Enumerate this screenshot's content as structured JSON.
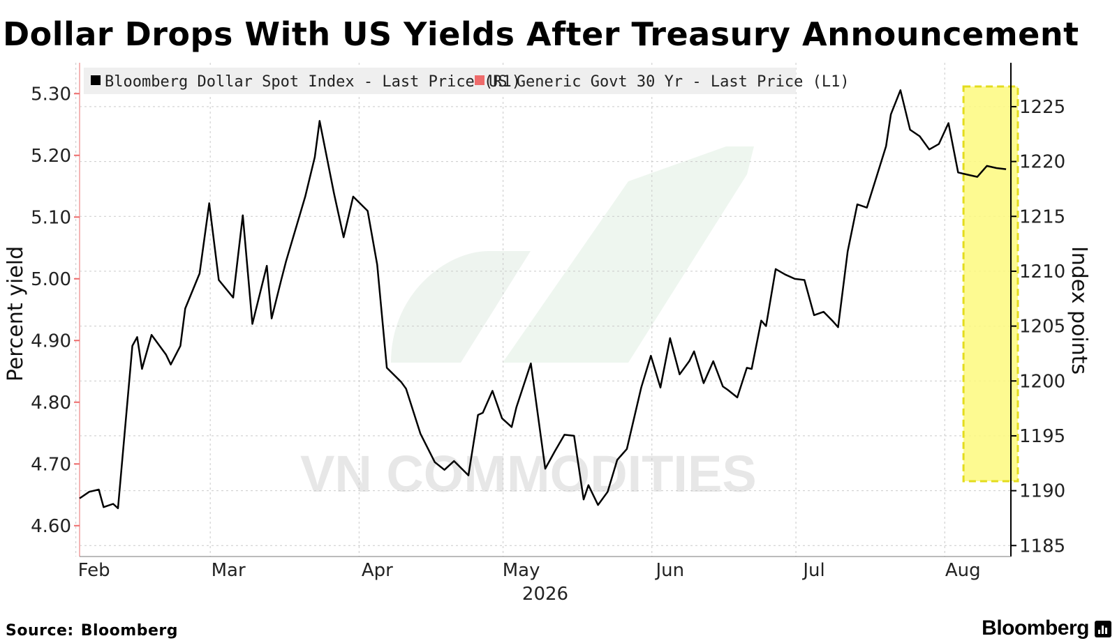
{
  "title": "Dollar Drops With US Yields After Treasury Announcement",
  "source_label": "Source:",
  "source_value": "Bloomberg",
  "brand": "Bloomberg",
  "watermark": "VN COMMODITIES",
  "colors": {
    "dollar": "#000000",
    "yield": "#ee6b6b",
    "highlight_fill": "#fdf97e",
    "highlight_border": "#e3dc1d",
    "grid": "#c9c9c9"
  },
  "chart_data": {
    "type": "line",
    "xlabel_year": "2026",
    "ylabel_left": "Percent yield",
    "ylabel_right": "Index points",
    "ylim_left": [
      4.55,
      5.35
    ],
    "ylim_right": [
      1184,
      1229
    ],
    "yticks_left": [
      "4.60",
      "4.70",
      "4.80",
      "4.90",
      "5.00",
      "5.10",
      "5.20",
      "5.30"
    ],
    "yticks_right": [
      "1185",
      "1190",
      "1195",
      "1200",
      "1205",
      "1210",
      "1215",
      "1220",
      "1225"
    ],
    "x_range": [
      "2026-01-29",
      "2026-08-11"
    ],
    "month_labels": [
      {
        "label": "Feb",
        "date": "2026-02-01"
      },
      {
        "label": "Mar",
        "date": "2026-03-01"
      },
      {
        "label": "Apr",
        "date": "2026-04-01"
      },
      {
        "label": "May",
        "date": "2026-05-01"
      },
      {
        "label": "Jun",
        "date": "2026-06-01"
      },
      {
        "label": "Jul",
        "date": "2026-07-01"
      },
      {
        "label": "Aug",
        "date": "2026-08-01"
      }
    ],
    "legend": "top-left",
    "grid": true,
    "highlight": {
      "from": "2026-08-02",
      "to": "2026-08-11"
    },
    "series": [
      {
        "name": "Bloomberg Dollar Spot Index - Last Price (R1)",
        "axis": "right",
        "color": "#000000",
        "points": [
          [
            "2026-01-29",
            1189.3
          ],
          [
            "2026-01-31",
            1189.9
          ],
          [
            "2026-02-02",
            1190.1
          ],
          [
            "2026-02-03",
            1188.5
          ],
          [
            "2026-02-05",
            1188.8
          ],
          [
            "2026-02-06",
            1188.4
          ],
          [
            "2026-02-09",
            1203.2
          ],
          [
            "2026-02-10",
            1204.0
          ],
          [
            "2026-02-11",
            1201.1
          ],
          [
            "2026-02-13",
            1204.2
          ],
          [
            "2026-02-14",
            1203.6
          ],
          [
            "2026-02-16",
            1202.4
          ],
          [
            "2026-02-17",
            1201.5
          ],
          [
            "2026-02-19",
            1203.2
          ],
          [
            "2026-02-20",
            1206.6
          ],
          [
            "2026-02-23",
            1209.8
          ],
          [
            "2026-02-25",
            1216.2
          ],
          [
            "2026-02-27",
            1209.2
          ],
          [
            "2026-03-02",
            1207.6
          ],
          [
            "2026-03-04",
            1215.1
          ],
          [
            "2026-03-06",
            1205.2
          ],
          [
            "2026-03-09",
            1210.5
          ],
          [
            "2026-03-10",
            1205.7
          ],
          [
            "2026-03-12",
            1209.2
          ],
          [
            "2026-03-13",
            1210.9
          ],
          [
            "2026-03-17",
            1216.8
          ],
          [
            "2026-03-19",
            1220.4
          ],
          [
            "2026-03-20",
            1223.7
          ],
          [
            "2026-03-23",
            1217.1
          ],
          [
            "2026-03-25",
            1213.1
          ],
          [
            "2026-03-27",
            1216.8
          ],
          [
            "2026-03-30",
            1215.5
          ],
          [
            "2026-04-01",
            1210.6
          ],
          [
            "2026-04-03",
            1201.2
          ],
          [
            "2026-04-06",
            1199.9
          ],
          [
            "2026-04-07",
            1199.3
          ],
          [
            "2026-04-10",
            1195.2
          ],
          [
            "2026-04-13",
            1192.6
          ],
          [
            "2026-04-15",
            1191.9
          ],
          [
            "2026-04-17",
            1192.7
          ],
          [
            "2026-04-20",
            1191.4
          ],
          [
            "2026-04-22",
            1196.9
          ],
          [
            "2026-04-23",
            1197.1
          ],
          [
            "2026-04-25",
            1199.1
          ],
          [
            "2026-04-27",
            1196.6
          ],
          [
            "2026-04-29",
            1195.8
          ],
          [
            "2026-04-30",
            1197.6
          ],
          [
            "2026-05-03",
            1201.6
          ],
          [
            "2026-05-06",
            1192.0
          ],
          [
            "2026-05-08",
            1193.6
          ],
          [
            "2026-05-10",
            1195.1
          ],
          [
            "2026-05-12",
            1195.0
          ],
          [
            "2026-05-14",
            1189.2
          ],
          [
            "2026-05-15",
            1190.5
          ],
          [
            "2026-05-17",
            1188.7
          ],
          [
            "2026-05-19",
            1189.9
          ],
          [
            "2026-05-21",
            1192.8
          ],
          [
            "2026-05-23",
            1193.8
          ],
          [
            "2026-05-26",
            1199.4
          ],
          [
            "2026-05-28",
            1202.3
          ],
          [
            "2026-05-30",
            1199.4
          ],
          [
            "2026-06-01",
            1203.9
          ],
          [
            "2026-06-03",
            1200.6
          ],
          [
            "2026-06-05",
            1201.8
          ],
          [
            "2026-06-06",
            1202.7
          ],
          [
            "2026-06-08",
            1199.8
          ],
          [
            "2026-06-10",
            1201.8
          ],
          [
            "2026-06-12",
            1199.5
          ],
          [
            "2026-06-13",
            1199.2
          ],
          [
            "2026-06-15",
            1198.5
          ],
          [
            "2026-06-17",
            1201.2
          ],
          [
            "2026-06-18",
            1201.1
          ],
          [
            "2026-06-20",
            1205.5
          ],
          [
            "2026-06-21",
            1205.0
          ],
          [
            "2026-06-23",
            1210.2
          ],
          [
            "2026-06-25",
            1209.7
          ],
          [
            "2026-06-27",
            1209.3
          ],
          [
            "2026-06-29",
            1209.2
          ],
          [
            "2026-07-01",
            1206.0
          ],
          [
            "2026-07-03",
            1206.3
          ],
          [
            "2026-07-05",
            1205.4
          ],
          [
            "2026-07-06",
            1204.9
          ],
          [
            "2026-07-08",
            1211.8
          ],
          [
            "2026-07-10",
            1216.1
          ],
          [
            "2026-07-12",
            1215.8
          ],
          [
            "2026-07-14",
            1218.6
          ],
          [
            "2026-07-16",
            1221.4
          ],
          [
            "2026-07-17",
            1224.3
          ],
          [
            "2026-07-19",
            1226.5
          ],
          [
            "2026-07-21",
            1222.9
          ],
          [
            "2026-07-23",
            1222.3
          ],
          [
            "2026-07-25",
            1221.1
          ],
          [
            "2026-07-27",
            1221.6
          ],
          [
            "2026-07-29",
            1223.5
          ],
          [
            "2026-07-31",
            1219.0
          ],
          [
            "2026-08-02",
            1218.8
          ],
          [
            "2026-08-04",
            1218.6
          ],
          [
            "2026-08-06",
            1219.6
          ],
          [
            "2026-08-08",
            1219.4
          ],
          [
            "2026-08-10",
            1219.3
          ]
        ]
      },
      {
        "name": "US Generic Govt 30 Yr - Last Price (L1)",
        "axis": "left",
        "color": "#ee6b6b",
        "points": []
      }
    ]
  }
}
